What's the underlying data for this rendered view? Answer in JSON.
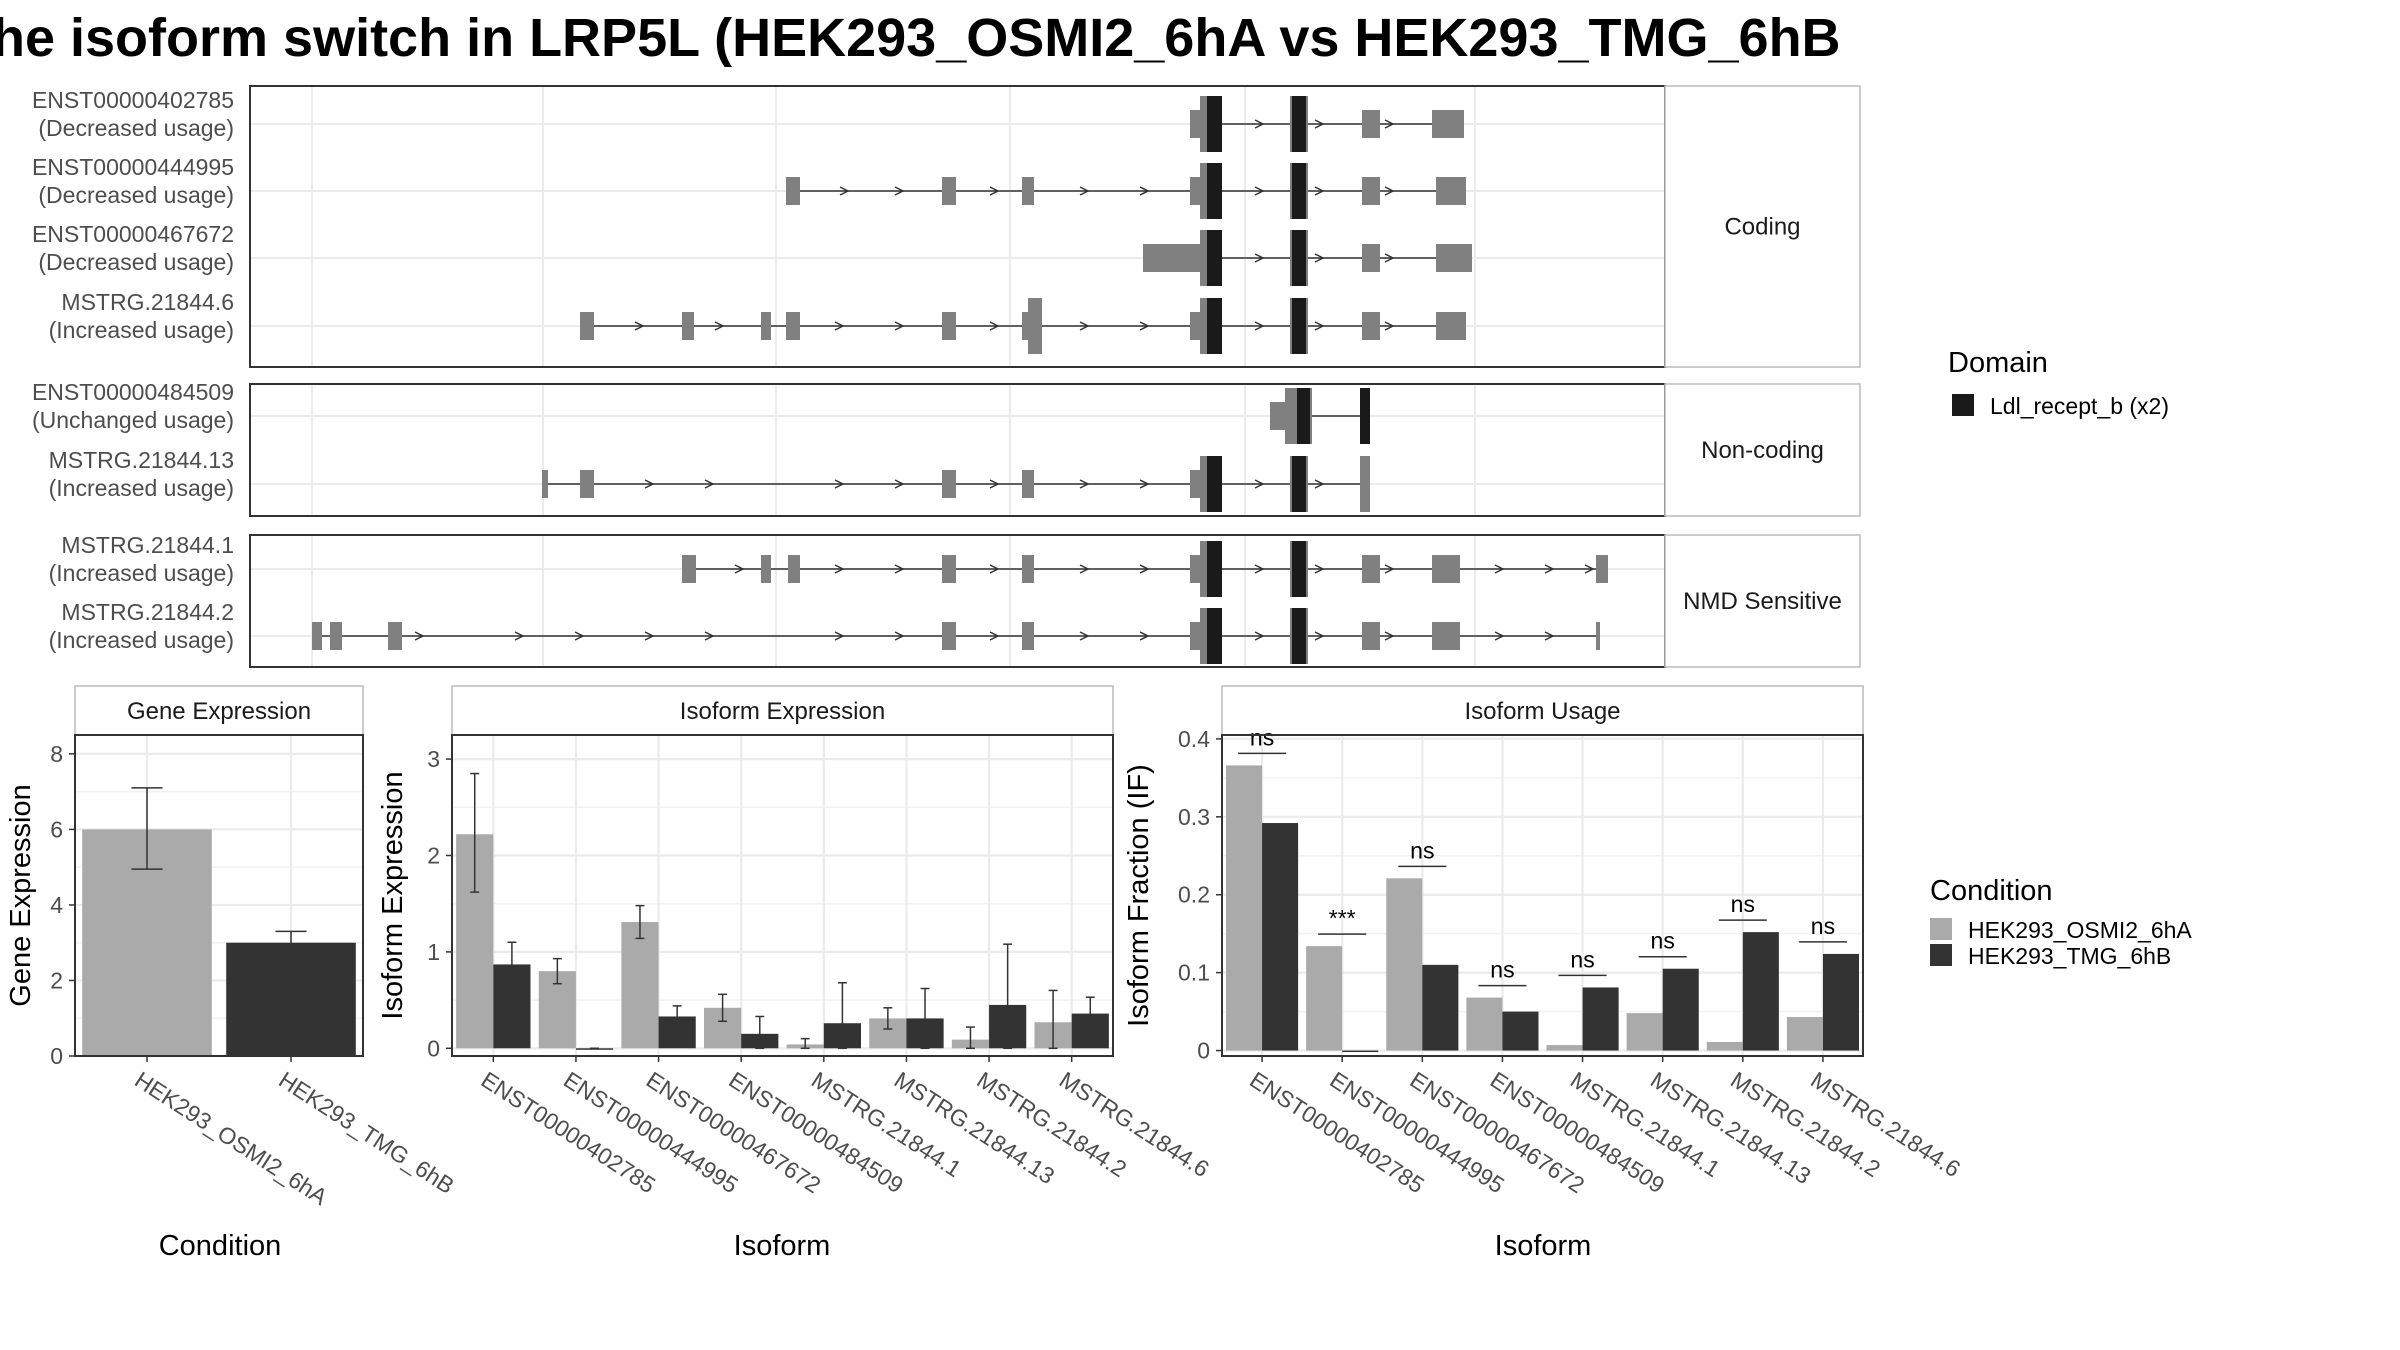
{
  "title": "he isoform switch in LRP5L (HEK293_OSMI2_6hA vs HEK293_TMG_6hB",
  "colors": {
    "cond_a": "#aaaaaa",
    "cond_b": "#333333",
    "exon": "#808080",
    "domain": "#1a1a1a",
    "strip_bg": "#ffffff",
    "grid": "#ebebeb"
  },
  "structure": {
    "panels": [
      {
        "label": "Coding",
        "transcripts": [
          {
            "name": "ENST00000402785",
            "status": "(Decreased usage)"
          },
          {
            "name": "ENST00000444995",
            "status": "(Decreased usage)"
          },
          {
            "name": "ENST00000467672",
            "status": "(Decreased usage)"
          },
          {
            "name": "MSTRG.21844.6",
            "status": "(Increased usage)"
          }
        ]
      },
      {
        "label": "Non-coding",
        "transcripts": [
          {
            "name": "ENST00000484509",
            "status": "(Unchanged usage)"
          },
          {
            "name": "MSTRG.21844.13",
            "status": "(Increased usage)"
          }
        ]
      },
      {
        "label": "NMD Sensitive",
        "transcripts": [
          {
            "name": "MSTRG.21844.1",
            "status": "(Increased usage)"
          },
          {
            "name": "MSTRG.21844.2",
            "status": "(Increased usage)"
          }
        ]
      }
    ],
    "legend": {
      "title": "Domain",
      "items": [
        {
          "label": "Ldl_recept_b (x2)",
          "color": "#1a1a1a"
        }
      ]
    }
  },
  "chart_data": [
    {
      "type": "bar",
      "title": "Gene Expression",
      "xlabel": "Condition",
      "ylabel": "Gene Expression",
      "ylim": [
        0,
        8.5
      ],
      "yticks": [
        0,
        2,
        4,
        6,
        8
      ],
      "categories": [
        "HEK293_OSMI2_6hA",
        "HEK293_TMG_6hB"
      ],
      "values": [
        6.0,
        3.0
      ],
      "errors": [
        [
          4.95,
          7.1
        ],
        [
          2.7,
          3.3
        ]
      ]
    },
    {
      "type": "bar",
      "title": "Isoform Expression",
      "xlabel": "Isoform",
      "ylabel": "Isoform Expression",
      "ylim": [
        -0.08,
        3.25
      ],
      "yticks": [
        0,
        1,
        2,
        3
      ],
      "categories": [
        "ENST00000402785",
        "ENST00000444995",
        "ENST00000467672",
        "ENST00000484509",
        "MSTRG.21844.1",
        "MSTRG.21844.13",
        "MSTRG.21844.2",
        "MSTRG.21844.6"
      ],
      "series": [
        {
          "name": "HEK293_OSMI2_6hA",
          "values": [
            2.22,
            0.8,
            1.31,
            0.42,
            0.04,
            0.31,
            0.09,
            0.27
          ],
          "errors": [
            [
              1.62,
              2.85
            ],
            [
              0.67,
              0.93
            ],
            [
              1.14,
              1.48
            ],
            [
              0.28,
              0.56
            ],
            [
              0.0,
              0.1
            ],
            [
              0.2,
              0.42
            ],
            [
              0.0,
              0.22
            ],
            [
              0.0,
              0.6
            ]
          ]
        },
        {
          "name": "HEK293_TMG_6hB",
          "values": [
            0.87,
            0.0,
            0.33,
            0.15,
            0.26,
            0.31,
            0.45,
            0.36
          ],
          "errors": [
            [
              0.64,
              1.1
            ],
            [
              0.0,
              0.0
            ],
            [
              0.22,
              0.44
            ],
            [
              0.0,
              0.33
            ],
            [
              0.0,
              0.68
            ],
            [
              0.0,
              0.62
            ],
            [
              0.0,
              1.08
            ],
            [
              0.18,
              0.53
            ]
          ]
        }
      ]
    },
    {
      "type": "bar",
      "title": "Isoform Usage",
      "xlabel": "Isoform",
      "ylabel": "Isoform Fraction (IF)",
      "ylim": [
        -0.007,
        0.405
      ],
      "yticks": [
        0.0,
        0.1,
        0.2,
        0.3,
        0.4
      ],
      "categories": [
        "ENST00000402785",
        "ENST00000444995",
        "ENST00000467672",
        "ENST00000484509",
        "MSTRG.21844.1",
        "MSTRG.21844.13",
        "MSTRG.21844.2",
        "MSTRG.21844.6"
      ],
      "series": [
        {
          "name": "HEK293_OSMI2_6hA",
          "values": [
            0.366,
            0.134,
            0.221,
            0.068,
            0.007,
            0.048,
            0.011,
            0.043
          ]
        },
        {
          "name": "HEK293_TMG_6hB",
          "values": [
            0.292,
            0.0,
            0.11,
            0.05,
            0.081,
            0.105,
            0.152,
            0.124
          ]
        }
      ],
      "significance": [
        "ns",
        "***",
        "ns",
        "ns",
        "ns",
        "ns",
        "ns",
        "ns"
      ]
    }
  ],
  "condition_legend": {
    "title": "Condition",
    "items": [
      {
        "label": "HEK293_OSMI2_6hA",
        "color": "#aaaaaa"
      },
      {
        "label": "HEK293_TMG_6hB",
        "color": "#333333"
      }
    ]
  }
}
